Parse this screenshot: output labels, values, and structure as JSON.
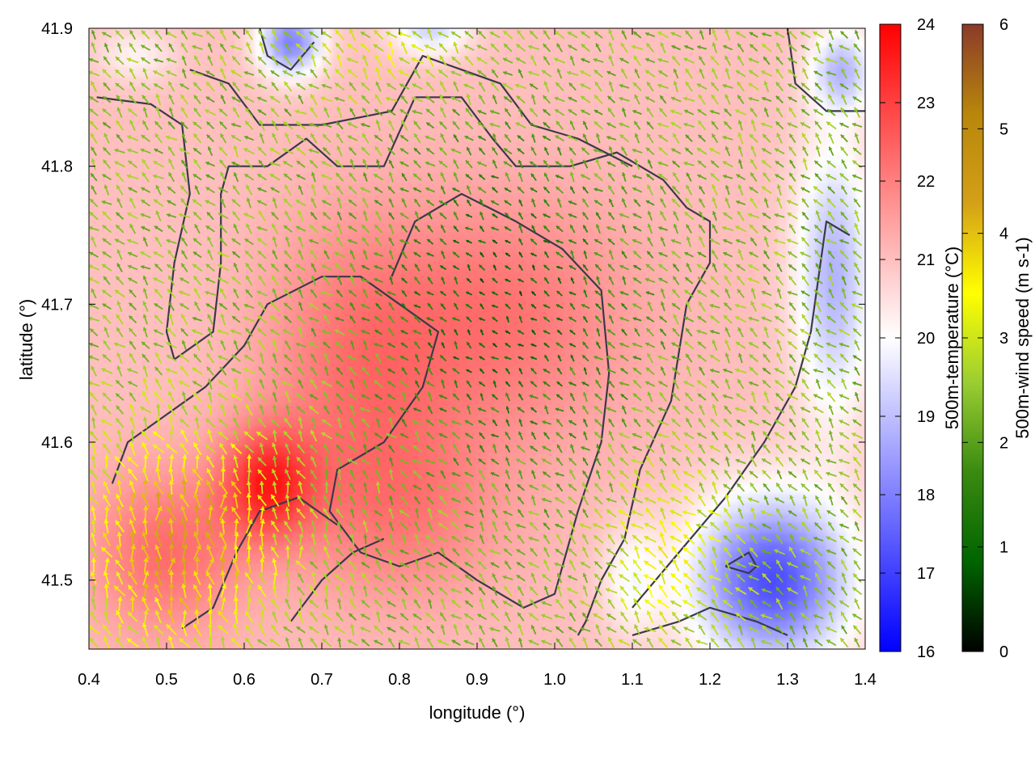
{
  "chart_data": {
    "type": "heatmap",
    "title": "",
    "xlabel": "longitude (°)",
    "ylabel": "latitude (°)",
    "xlim": [
      0.4,
      1.4
    ],
    "ylim": [
      41.45,
      41.9
    ],
    "xticks": [
      "0.4",
      "0.5",
      "0.6",
      "0.7",
      "0.8",
      "0.9",
      "1.0",
      "1.1",
      "1.2",
      "1.3",
      "1.4"
    ],
    "yticks": [
      "41.5",
      "41.6",
      "41.7",
      "41.8",
      "41.9"
    ],
    "colorbars": [
      {
        "label": "500m-temperature (°C)",
        "range": [
          16,
          24
        ],
        "ticks": [
          "16",
          "17",
          "18",
          "19",
          "20",
          "21",
          "22",
          "23",
          "24"
        ],
        "colors": [
          "#0000ff",
          "#ffffff",
          "#ff0000"
        ]
      },
      {
        "label": "500m-wind speed (m s-1)",
        "range": [
          0,
          6
        ],
        "ticks": [
          "0",
          "1",
          "2",
          "3",
          "4",
          "5",
          "6"
        ],
        "colors": [
          "#000000",
          "#006400",
          "#3a8a10",
          "#9acd32",
          "#ffff00",
          "#d4a017",
          "#b8860b",
          "#8b3a2a"
        ]
      }
    ],
    "temperature_field": {
      "background": 21.0,
      "regions": [
        {
          "lon": 0.93,
          "lat": 41.69,
          "temp": 22.2,
          "r_lon": 0.17,
          "r_lat": 0.09
        },
        {
          "lon": 0.74,
          "lat": 41.66,
          "temp": 22.0,
          "r_lon": 0.12,
          "r_lat": 0.1
        },
        {
          "lon": 0.63,
          "lat": 41.57,
          "temp": 23.2,
          "r_lon": 0.06,
          "r_lat": 0.04
        },
        {
          "lon": 0.5,
          "lat": 41.52,
          "temp": 22.3,
          "r_lon": 0.1,
          "r_lat": 0.06
        },
        {
          "lon": 0.8,
          "lat": 41.55,
          "temp": 22.0,
          "r_lon": 0.14,
          "r_lat": 0.07
        },
        {
          "lon": 1.28,
          "lat": 41.5,
          "temp": 17.2,
          "r_lon": 0.1,
          "r_lat": 0.06
        },
        {
          "lon": 1.36,
          "lat": 41.72,
          "temp": 18.8,
          "r_lon": 0.05,
          "r_lat": 0.1
        },
        {
          "lon": 0.66,
          "lat": 41.89,
          "temp": 18.0,
          "r_lon": 0.04,
          "r_lat": 0.025
        },
        {
          "lon": 0.84,
          "lat": 41.9,
          "temp": 19.3,
          "r_lon": 0.05,
          "r_lat": 0.02
        },
        {
          "lon": 1.37,
          "lat": 41.87,
          "temp": 19.0,
          "r_lon": 0.04,
          "r_lat": 0.03
        },
        {
          "lon": 1.1,
          "lat": 41.5,
          "temp": 20.0,
          "r_lon": 0.04,
          "r_lat": 0.04
        },
        {
          "lon": 0.46,
          "lat": 41.88,
          "temp": 20.2,
          "r_lon": 0.05,
          "r_lat": 0.02
        }
      ]
    },
    "wind_field": {
      "direction": "mostly north-westward, northward over the south-west",
      "speed_regions": [
        {
          "lon": 0.93,
          "lat": 41.7,
          "speed": 0.9,
          "r_lon": 0.15,
          "r_lat": 0.1
        },
        {
          "lon": 0.52,
          "lat": 41.53,
          "speed": 4.3,
          "r_lon": 0.12,
          "r_lat": 0.08
        },
        {
          "lon": 1.15,
          "lat": 41.52,
          "speed": 3.4,
          "r_lon": 0.08,
          "r_lat": 0.06
        },
        {
          "lon": 0.78,
          "lat": 41.88,
          "speed": 3.0,
          "r_lon": 0.1,
          "r_lat": 0.03
        }
      ],
      "background_speed": 2.4
    },
    "contours": [
      [
        [
          0.41,
          41.85
        ],
        [
          0.48,
          41.845
        ],
        [
          0.52,
          41.83
        ],
        [
          0.53,
          41.78
        ],
        [
          0.51,
          41.73
        ],
        [
          0.5,
          41.68
        ],
        [
          0.51,
          41.66
        ],
        [
          0.56,
          41.68
        ],
        [
          0.57,
          41.73
        ],
        [
          0.57,
          41.78
        ],
        [
          0.58,
          41.8
        ],
        [
          0.63,
          41.8
        ],
        [
          0.68,
          41.82
        ],
        [
          0.72,
          41.8
        ],
        [
          0.78,
          41.8
        ],
        [
          0.82,
          41.85
        ],
        [
          0.88,
          41.85
        ],
        [
          0.92,
          41.82
        ],
        [
          0.95,
          41.8
        ],
        [
          1.02,
          41.8
        ],
        [
          1.08,
          41.81
        ],
        [
          1.14,
          41.79
        ],
        [
          1.17,
          41.77
        ],
        [
          1.2,
          41.76
        ],
        [
          1.2,
          41.73
        ],
        [
          1.17,
          41.7
        ],
        [
          1.15,
          41.63
        ],
        [
          1.11,
          41.58
        ],
        [
          1.09,
          41.53
        ],
        [
          1.06,
          41.5
        ],
        [
          1.04,
          41.47
        ],
        [
          1.03,
          41.46
        ]
      ],
      [
        [
          0.53,
          41.87
        ],
        [
          0.58,
          41.86
        ],
        [
          0.62,
          41.83
        ],
        [
          0.7,
          41.83
        ],
        [
          0.79,
          41.84
        ],
        [
          0.83,
          41.88
        ],
        [
          0.88,
          41.87
        ],
        [
          0.93,
          41.86
        ],
        [
          0.97,
          41.83
        ],
        [
          1.03,
          41.82
        ],
        [
          1.1,
          41.8
        ]
      ],
      [
        [
          0.43,
          41.57
        ],
        [
          0.45,
          41.6
        ],
        [
          0.5,
          41.62
        ],
        [
          0.55,
          41.64
        ],
        [
          0.6,
          41.67
        ],
        [
          0.63,
          41.7
        ],
        [
          0.7,
          41.72
        ],
        [
          0.75,
          41.72
        ],
        [
          0.8,
          41.7
        ],
        [
          0.85,
          41.68
        ],
        [
          0.83,
          41.64
        ],
        [
          0.78,
          41.6
        ],
        [
          0.72,
          41.58
        ],
        [
          0.71,
          41.55
        ],
        [
          0.75,
          41.52
        ],
        [
          0.8,
          41.51
        ],
        [
          0.85,
          41.52
        ],
        [
          0.9,
          41.5
        ],
        [
          0.96,
          41.48
        ],
        [
          1.0,
          41.49
        ],
        [
          1.03,
          41.55
        ],
        [
          1.06,
          41.6
        ],
        [
          1.07,
          41.65
        ],
        [
          1.06,
          41.71
        ],
        [
          1.01,
          41.74
        ],
        [
          0.95,
          41.76
        ],
        [
          0.88,
          41.78
        ],
        [
          0.82,
          41.76
        ],
        [
          0.79,
          41.72
        ]
      ],
      [
        [
          0.52,
          41.465
        ],
        [
          0.56,
          41.48
        ],
        [
          0.59,
          41.52
        ],
        [
          0.62,
          41.55
        ],
        [
          0.67,
          41.56
        ],
        [
          0.72,
          41.54
        ]
      ],
      [
        [
          0.66,
          41.47
        ],
        [
          0.7,
          41.5
        ],
        [
          0.74,
          41.52
        ],
        [
          0.78,
          41.53
        ]
      ],
      [
        [
          1.1,
          41.46
        ],
        [
          1.16,
          41.47
        ],
        [
          1.2,
          41.48
        ],
        [
          1.26,
          41.47
        ],
        [
          1.3,
          41.46
        ]
      ],
      [
        [
          1.22,
          41.51
        ],
        [
          1.25,
          41.52
        ],
        [
          1.26,
          41.51
        ],
        [
          1.25,
          41.505
        ],
        [
          1.22,
          41.51
        ]
      ],
      [
        [
          1.38,
          41.75
        ],
        [
          1.35,
          41.76
        ],
        [
          1.34,
          41.72
        ],
        [
          1.33,
          41.68
        ],
        [
          1.31,
          41.64
        ],
        [
          1.27,
          41.6
        ],
        [
          1.22,
          41.56
        ],
        [
          1.16,
          41.52
        ],
        [
          1.1,
          41.48
        ]
      ],
      [
        [
          0.62,
          41.9
        ],
        [
          0.63,
          41.88
        ],
        [
          0.66,
          41.87
        ],
        [
          0.69,
          41.89
        ]
      ],
      [
        [
          1.3,
          41.9
        ],
        [
          1.31,
          41.86
        ],
        [
          1.35,
          41.84
        ],
        [
          1.4,
          41.84
        ]
      ]
    ]
  }
}
